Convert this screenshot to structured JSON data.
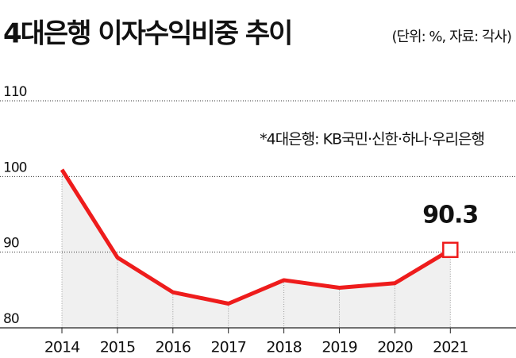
{
  "chart_data": {
    "type": "line",
    "title": "4대은행 이자수익비중 추이",
    "subtitle": "(단위: %, 자료: 각사)",
    "annotation": "*4대은행: KB국민·신한·하나·우리은행",
    "categories": [
      "2014",
      "2015",
      "2016",
      "2017",
      "2018",
      "2019",
      "2020",
      "2021"
    ],
    "series": [
      {
        "name": "이자수익비중",
        "color": "#ee1c1c",
        "values": [
          100.9,
          89.3,
          84.7,
          83.2,
          86.3,
          85.3,
          85.9,
          90.3
        ],
        "value_labels": [
          null,
          null,
          null,
          null,
          null,
          null,
          null,
          "90.3"
        ]
      }
    ],
    "ylim": [
      80,
      110
    ],
    "yticks": [
      80,
      90,
      100,
      110
    ],
    "grid": true,
    "area_color": "#f0f0f0"
  }
}
